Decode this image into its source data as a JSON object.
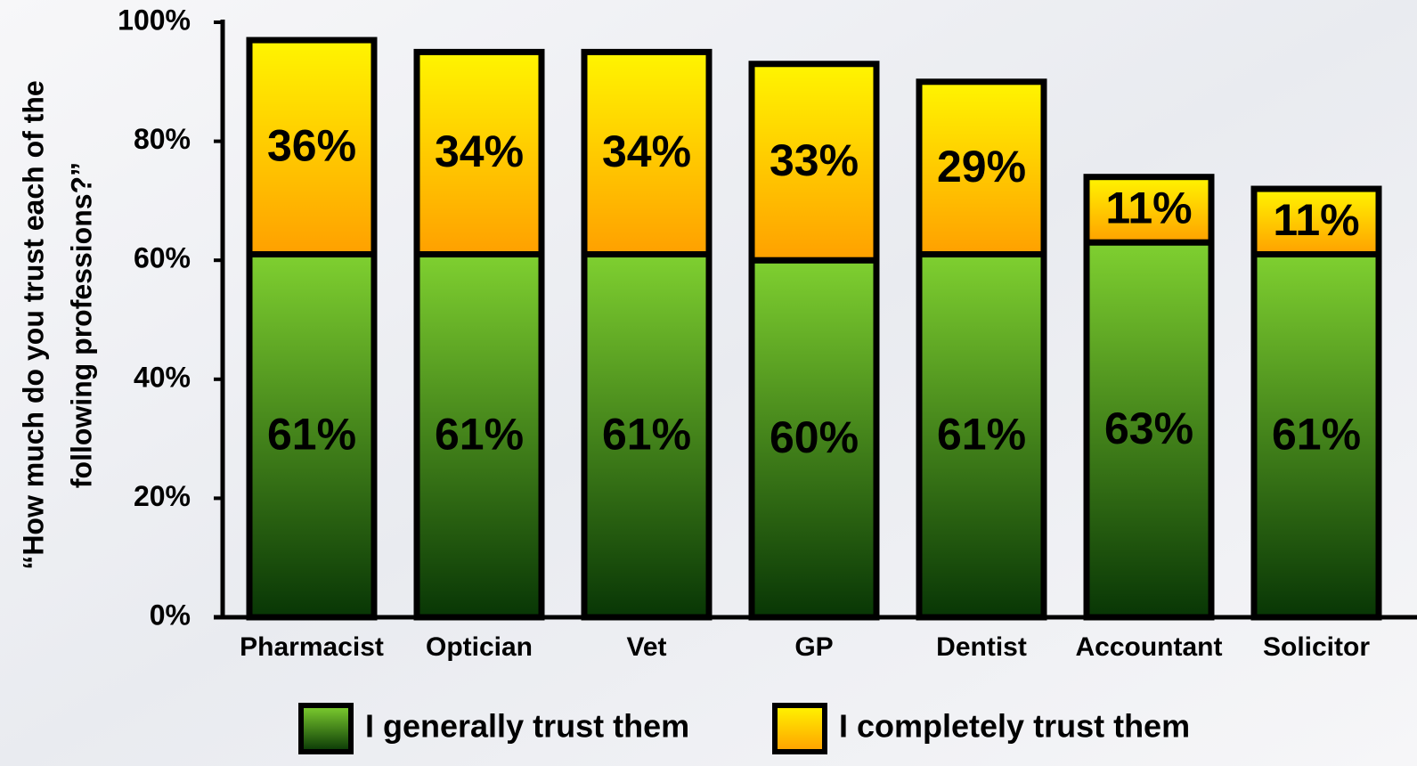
{
  "chart_data": {
    "type": "stacked-bar",
    "ylabel": [
      "“How much do you trust each of the",
      "following professions?”"
    ],
    "categories": [
      "Pharmacist",
      "Optician",
      "Vet",
      "GP",
      "Dentist",
      "Accountant",
      "Solicitor"
    ],
    "series": [
      {
        "name": "I generally trust them",
        "color": "#7fd030",
        "values": [
          61,
          61,
          61,
          60,
          61,
          63,
          61
        ],
        "value_labels": [
          "61%",
          "61%",
          "61%",
          "60%",
          "61%",
          "63%",
          "61%"
        ]
      },
      {
        "name": "I completely trust them",
        "color": "#fff500",
        "values": [
          36,
          34,
          34,
          33,
          29,
          11,
          11
        ],
        "value_labels": [
          "36%",
          "34%",
          "34%",
          "33%",
          "29%",
          "11%",
          "11%"
        ]
      }
    ],
    "ylim": [
      0,
      100
    ],
    "yticks": [
      {
        "value": 0,
        "label": "0%"
      },
      {
        "value": 20,
        "label": "20%"
      },
      {
        "value": 40,
        "label": "40%"
      },
      {
        "value": 60,
        "label": "60%"
      },
      {
        "value": 80,
        "label": "80%"
      },
      {
        "value": 100,
        "label": "100%"
      }
    ],
    "legend": "bottom"
  }
}
